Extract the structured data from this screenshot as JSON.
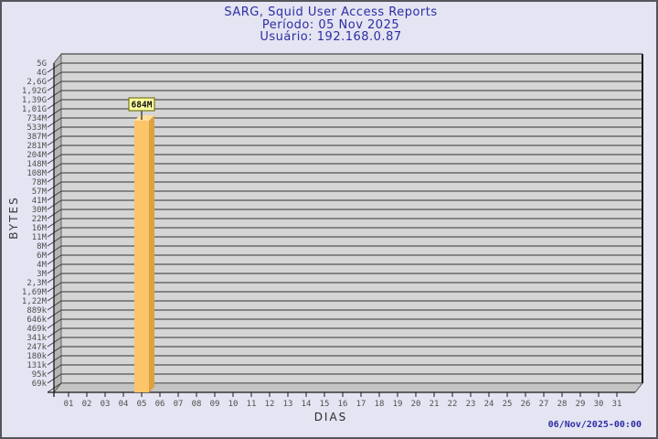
{
  "title": {
    "line1": "SARG, Squid User Access Reports",
    "line2": "Período: 05 Nov 2025",
    "line3": "Usuário: 192.168.0.87"
  },
  "chart_data": {
    "type": "bar",
    "title": "SARG, Squid User Access Reports",
    "subtitle_period": "Período: 05 Nov 2025",
    "subtitle_user": "Usuário: 192.168.0.87",
    "xlabel": "DIAS",
    "ylabel": "BYTES",
    "y_scale": "log",
    "y_min_bytes": 69000,
    "y_tick_labels_top_to_bottom": [
      "5G",
      "4G",
      "2,6G",
      "1,92G",
      "1,39G",
      "1,01G",
      "734M",
      "533M",
      "387M",
      "281M",
      "204M",
      "148M",
      "108M",
      "78M",
      "57M",
      "41M",
      "30M",
      "22M",
      "16M",
      "11M",
      "8M",
      "6M",
      "4M",
      "3M",
      "2,3M",
      "1,69M",
      "1,22M",
      "889k",
      "646k",
      "469k",
      "341k",
      "247k",
      "180k",
      "131k",
      "95k",
      "69k"
    ],
    "categories": [
      "01",
      "02",
      "03",
      "04",
      "05",
      "06",
      "07",
      "08",
      "09",
      "10",
      "11",
      "12",
      "13",
      "14",
      "15",
      "16",
      "17",
      "18",
      "19",
      "20",
      "21",
      "22",
      "23",
      "24",
      "25",
      "26",
      "27",
      "28",
      "29",
      "30",
      "31"
    ],
    "bars": [
      {
        "category": "05",
        "value_bytes": 684000000,
        "value_label": "684M"
      }
    ],
    "grid": "horizontal",
    "legend": "none"
  },
  "footer": {
    "generated_at": "06/Nov/2025-00:00"
  },
  "colors": {
    "window_bg": "#e4e4f2",
    "title_text": "#2d2da4",
    "plot_wall": "#d5d5d5",
    "plot_side_wall": "#b5b5b5",
    "plot_floor": "#c4c4c4",
    "gridline": "#6a6a6a",
    "wall_edge": "#4a4a4a",
    "axis": "#1a1a1a",
    "tick_text": "#4f4f4f",
    "bar_front": "#fdc46a",
    "bar_side": "#dea140",
    "bar_top": "#ffdf9e",
    "value_box_bg": "#ffffa0",
    "value_box_border": "#76761a",
    "value_text": "#111111",
    "footer_text": "#2d2da4"
  }
}
